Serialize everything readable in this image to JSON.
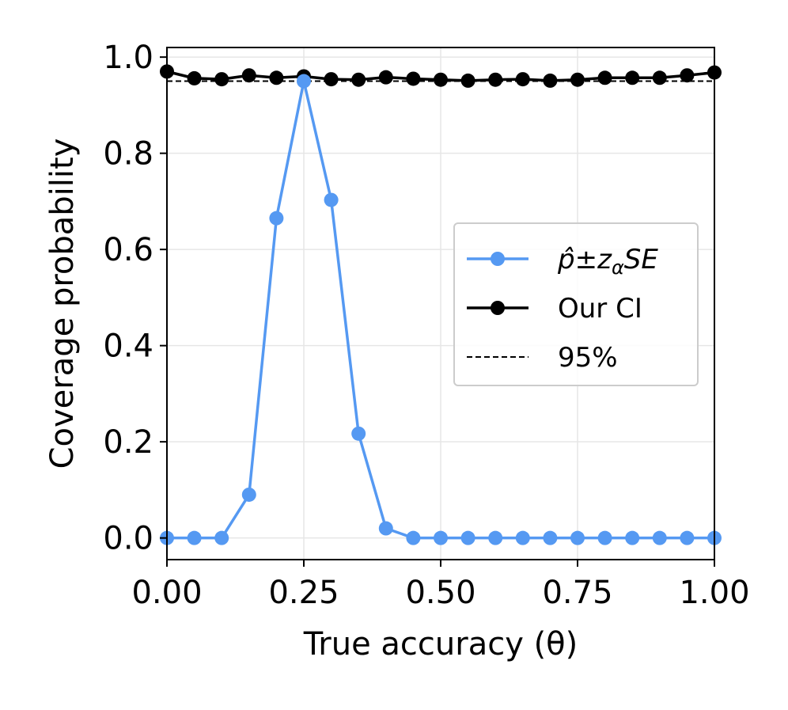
{
  "chart_data": {
    "type": "line",
    "title": "",
    "xlabel": "True accuracy (θ)",
    "ylabel": "Coverage probability",
    "xlim": [
      0,
      1
    ],
    "ylim": [
      -0.045,
      1.02
    ],
    "x_ticks": [
      "0.00",
      "0.25",
      "0.50",
      "0.75",
      "1.00"
    ],
    "y_ticks": [
      "0.0",
      "0.2",
      "0.4",
      "0.6",
      "0.8",
      "1.0"
    ],
    "grid": true,
    "legend_position": "center-right",
    "x": [
      0.0,
      0.05,
      0.1,
      0.15,
      0.2,
      0.25,
      0.3,
      0.35,
      0.4,
      0.45,
      0.5,
      0.55,
      0.6,
      0.65,
      0.7,
      0.75,
      0.8,
      0.85,
      0.9,
      0.95,
      1.0
    ],
    "series": [
      {
        "name": "p̂±zαSE",
        "color": "#5599f2",
        "marker": "circle",
        "values": [
          0.0,
          0.0,
          0.0,
          0.09,
          0.665,
          0.95,
          0.703,
          0.217,
          0.02,
          0.0,
          0.0,
          0.0,
          0.0,
          0.0,
          0.0,
          0.0,
          0.0,
          0.0,
          0.0,
          0.0,
          0.0
        ]
      },
      {
        "name": "Our CI",
        "color": "#000000",
        "marker": "circle",
        "values": [
          0.97,
          0.956,
          0.954,
          0.962,
          0.957,
          0.96,
          0.954,
          0.953,
          0.958,
          0.955,
          0.953,
          0.951,
          0.953,
          0.954,
          0.951,
          0.953,
          0.957,
          0.957,
          0.957,
          0.962,
          0.968
        ]
      }
    ],
    "reference_line": {
      "name": "95%",
      "y": 0.95,
      "style": "dashed",
      "color": "#000000"
    }
  }
}
